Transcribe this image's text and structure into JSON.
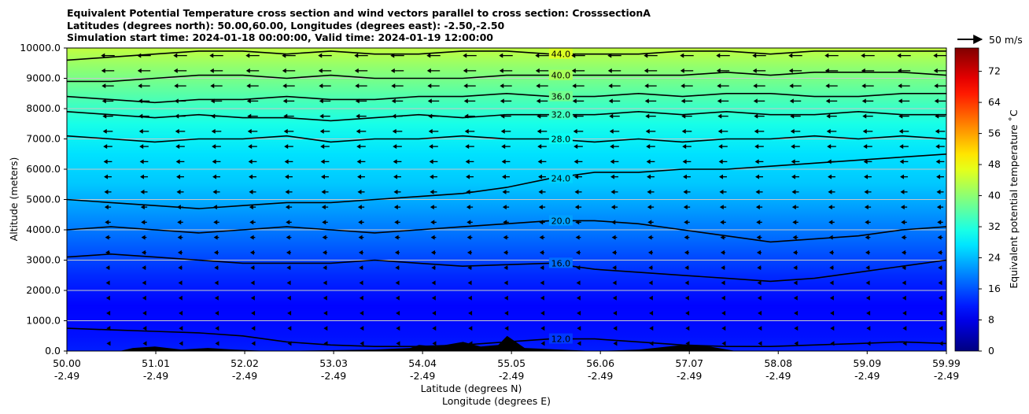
{
  "title": {
    "line1": "Equivalent Potential Temperature cross section and wind vectors parallel to cross section: CrosssectionA",
    "line2": "Latitudes (degrees north): 50.00,60.00, Longitudes (degrees east): -2.50,-2.50",
    "line3": "Simulation start time: 2024-01-18 00:00:00, Valid time: 2024-01-19 12:00:00"
  },
  "colors": {
    "contour_line": "#000000",
    "terrain": "#000000",
    "gridline": "#c8c8c8",
    "colormap": "jet"
  },
  "chart_data": {
    "type": "heatmap",
    "subtype": "filled contour cross-section with line contours and wind vectors",
    "xlabel": "Latitude (degrees N)",
    "xlabel2": "Longitude (degrees E)",
    "ylabel": "Altitude (meters)",
    "ylim": [
      0,
      10000
    ],
    "yticks": [
      "0.0",
      "1000.0",
      "2000.0",
      "3000.0",
      "4000.0",
      "5000.0",
      "6000.0",
      "7000.0",
      "8000.0",
      "9000.0",
      "10000.0"
    ],
    "xlim": [
      50.0,
      59.99
    ],
    "xticks_lat": [
      "50.00",
      "51.01",
      "52.02",
      "53.03",
      "54.04",
      "55.05",
      "56.06",
      "57.07",
      "58.08",
      "59.09",
      "59.99"
    ],
    "xticks_lon": [
      "-2.49",
      "-2.49",
      "-2.49",
      "-2.49",
      "-2.49",
      "-2.49",
      "-2.49",
      "-2.49",
      "-2.49",
      "-2.49",
      "-2.49"
    ],
    "horizontal_grid": true,
    "colorbar": {
      "label": "Equivalent potential temperature ˚C",
      "range": [
        0,
        78
      ],
      "ticks": [
        "0",
        "8",
        "16",
        "24",
        "32",
        "40",
        "48",
        "56",
        "64",
        "72"
      ]
    },
    "wind_key": {
      "label": "50 m/s",
      "value": 50
    },
    "wind_direction": "southward (toward 50.00 N)",
    "theta_e_profile": [
      {
        "z": 0,
        "theta_e": 12
      },
      {
        "z": 500,
        "theta_e": 11
      },
      {
        "z": 1500,
        "theta_e": 10
      },
      {
        "z": 2500,
        "theta_e": 13
      },
      {
        "z": 3500,
        "theta_e": 17
      },
      {
        "z": 4500,
        "theta_e": 21
      },
      {
        "z": 5500,
        "theta_e": 25
      },
      {
        "z": 6500,
        "theta_e": 27
      },
      {
        "z": 7500,
        "theta_e": 31
      },
      {
        "z": 8500,
        "theta_e": 36
      },
      {
        "z": 9500,
        "theta_e": 41
      },
      {
        "z": 10000,
        "theta_e": 44
      }
    ],
    "contours": [
      {
        "label": "12.0",
        "z": [
          750,
          700,
          650,
          600,
          500,
          300,
          200,
          150,
          150,
          200,
          300,
          400,
          400,
          300,
          200,
          150,
          150,
          200,
          250,
          300,
          250
        ]
      },
      {
        "label": "16.0",
        "z": [
          3100,
          3200,
          3100,
          3000,
          2900,
          2900,
          2900,
          3000,
          2900,
          2800,
          2850,
          2900,
          2700,
          2600,
          2500,
          2400,
          2300,
          2400,
          2600,
          2800,
          3000
        ]
      },
      {
        "label": "20.0",
        "z": [
          4000,
          4100,
          4000,
          3900,
          4000,
          4100,
          4000,
          3900,
          4000,
          4100,
          4200,
          4300,
          4300,
          4200,
          4000,
          3800,
          3600,
          3700,
          3800,
          4000,
          4100
        ]
      },
      {
        "label": "24.0",
        "z": [
          5000,
          4900,
          4800,
          4700,
          4800,
          4900,
          4900,
          5000,
          5100,
          5200,
          5400,
          5700,
          5900,
          5900,
          6000,
          6000,
          6100,
          6200,
          6300,
          6400,
          6500
        ]
      },
      {
        "label": "28.0",
        "z": [
          7100,
          7000,
          6900,
          7000,
          7000,
          7100,
          6900,
          7000,
          7000,
          7100,
          7000,
          7000,
          6900,
          7000,
          6900,
          7000,
          7000,
          7100,
          7000,
          7100,
          7000
        ]
      },
      {
        "label": "32.0",
        "z": [
          7900,
          7800,
          7700,
          7800,
          7700,
          7700,
          7600,
          7700,
          7800,
          7700,
          7800,
          7800,
          7800,
          7900,
          7800,
          7900,
          7800,
          7800,
          7900,
          7800,
          7800
        ]
      },
      {
        "label": "36.0",
        "z": [
          8400,
          8300,
          8200,
          8300,
          8300,
          8400,
          8300,
          8300,
          8400,
          8400,
          8500,
          8400,
          8400,
          8500,
          8400,
          8500,
          8500,
          8400,
          8400,
          8500,
          8500
        ]
      },
      {
        "label": "40.0",
        "z": [
          8900,
          8900,
          9000,
          9100,
          9100,
          9000,
          9100,
          9000,
          9000,
          9000,
          9100,
          9100,
          9100,
          9100,
          9100,
          9200,
          9100,
          9200,
          9200,
          9200,
          9100
        ]
      },
      {
        "label": "44.0",
        "z": [
          9600,
          9700,
          9800,
          9900,
          9900,
          9800,
          9900,
          9800,
          9800,
          9900,
          9900,
          9800,
          9800,
          9800,
          9900,
          9900,
          9800,
          9900,
          9900,
          9900,
          9900
        ]
      }
    ],
    "terrain": [
      {
        "lat": 50.0,
        "z": 0
      },
      {
        "lat": 50.6,
        "z": 0
      },
      {
        "lat": 50.75,
        "z": 100
      },
      {
        "lat": 51.0,
        "z": 150
      },
      {
        "lat": 51.3,
        "z": 50
      },
      {
        "lat": 51.6,
        "z": 100
      },
      {
        "lat": 51.9,
        "z": 50
      },
      {
        "lat": 52.3,
        "z": 0
      },
      {
        "lat": 53.5,
        "z": 50
      },
      {
        "lat": 53.9,
        "z": 100
      },
      {
        "lat": 54.0,
        "z": 200
      },
      {
        "lat": 54.2,
        "z": 150
      },
      {
        "lat": 54.5,
        "z": 300
      },
      {
        "lat": 54.7,
        "z": 150
      },
      {
        "lat": 54.9,
        "z": 200
      },
      {
        "lat": 55.0,
        "z": 500
      },
      {
        "lat": 55.2,
        "z": 100
      },
      {
        "lat": 55.6,
        "z": 50
      },
      {
        "lat": 56.0,
        "z": 0
      },
      {
        "lat": 56.5,
        "z": 50
      },
      {
        "lat": 57.0,
        "z": 200
      },
      {
        "lat": 57.3,
        "z": 150
      },
      {
        "lat": 57.6,
        "z": 0
      },
      {
        "lat": 59.99,
        "z": 0
      }
    ]
  }
}
